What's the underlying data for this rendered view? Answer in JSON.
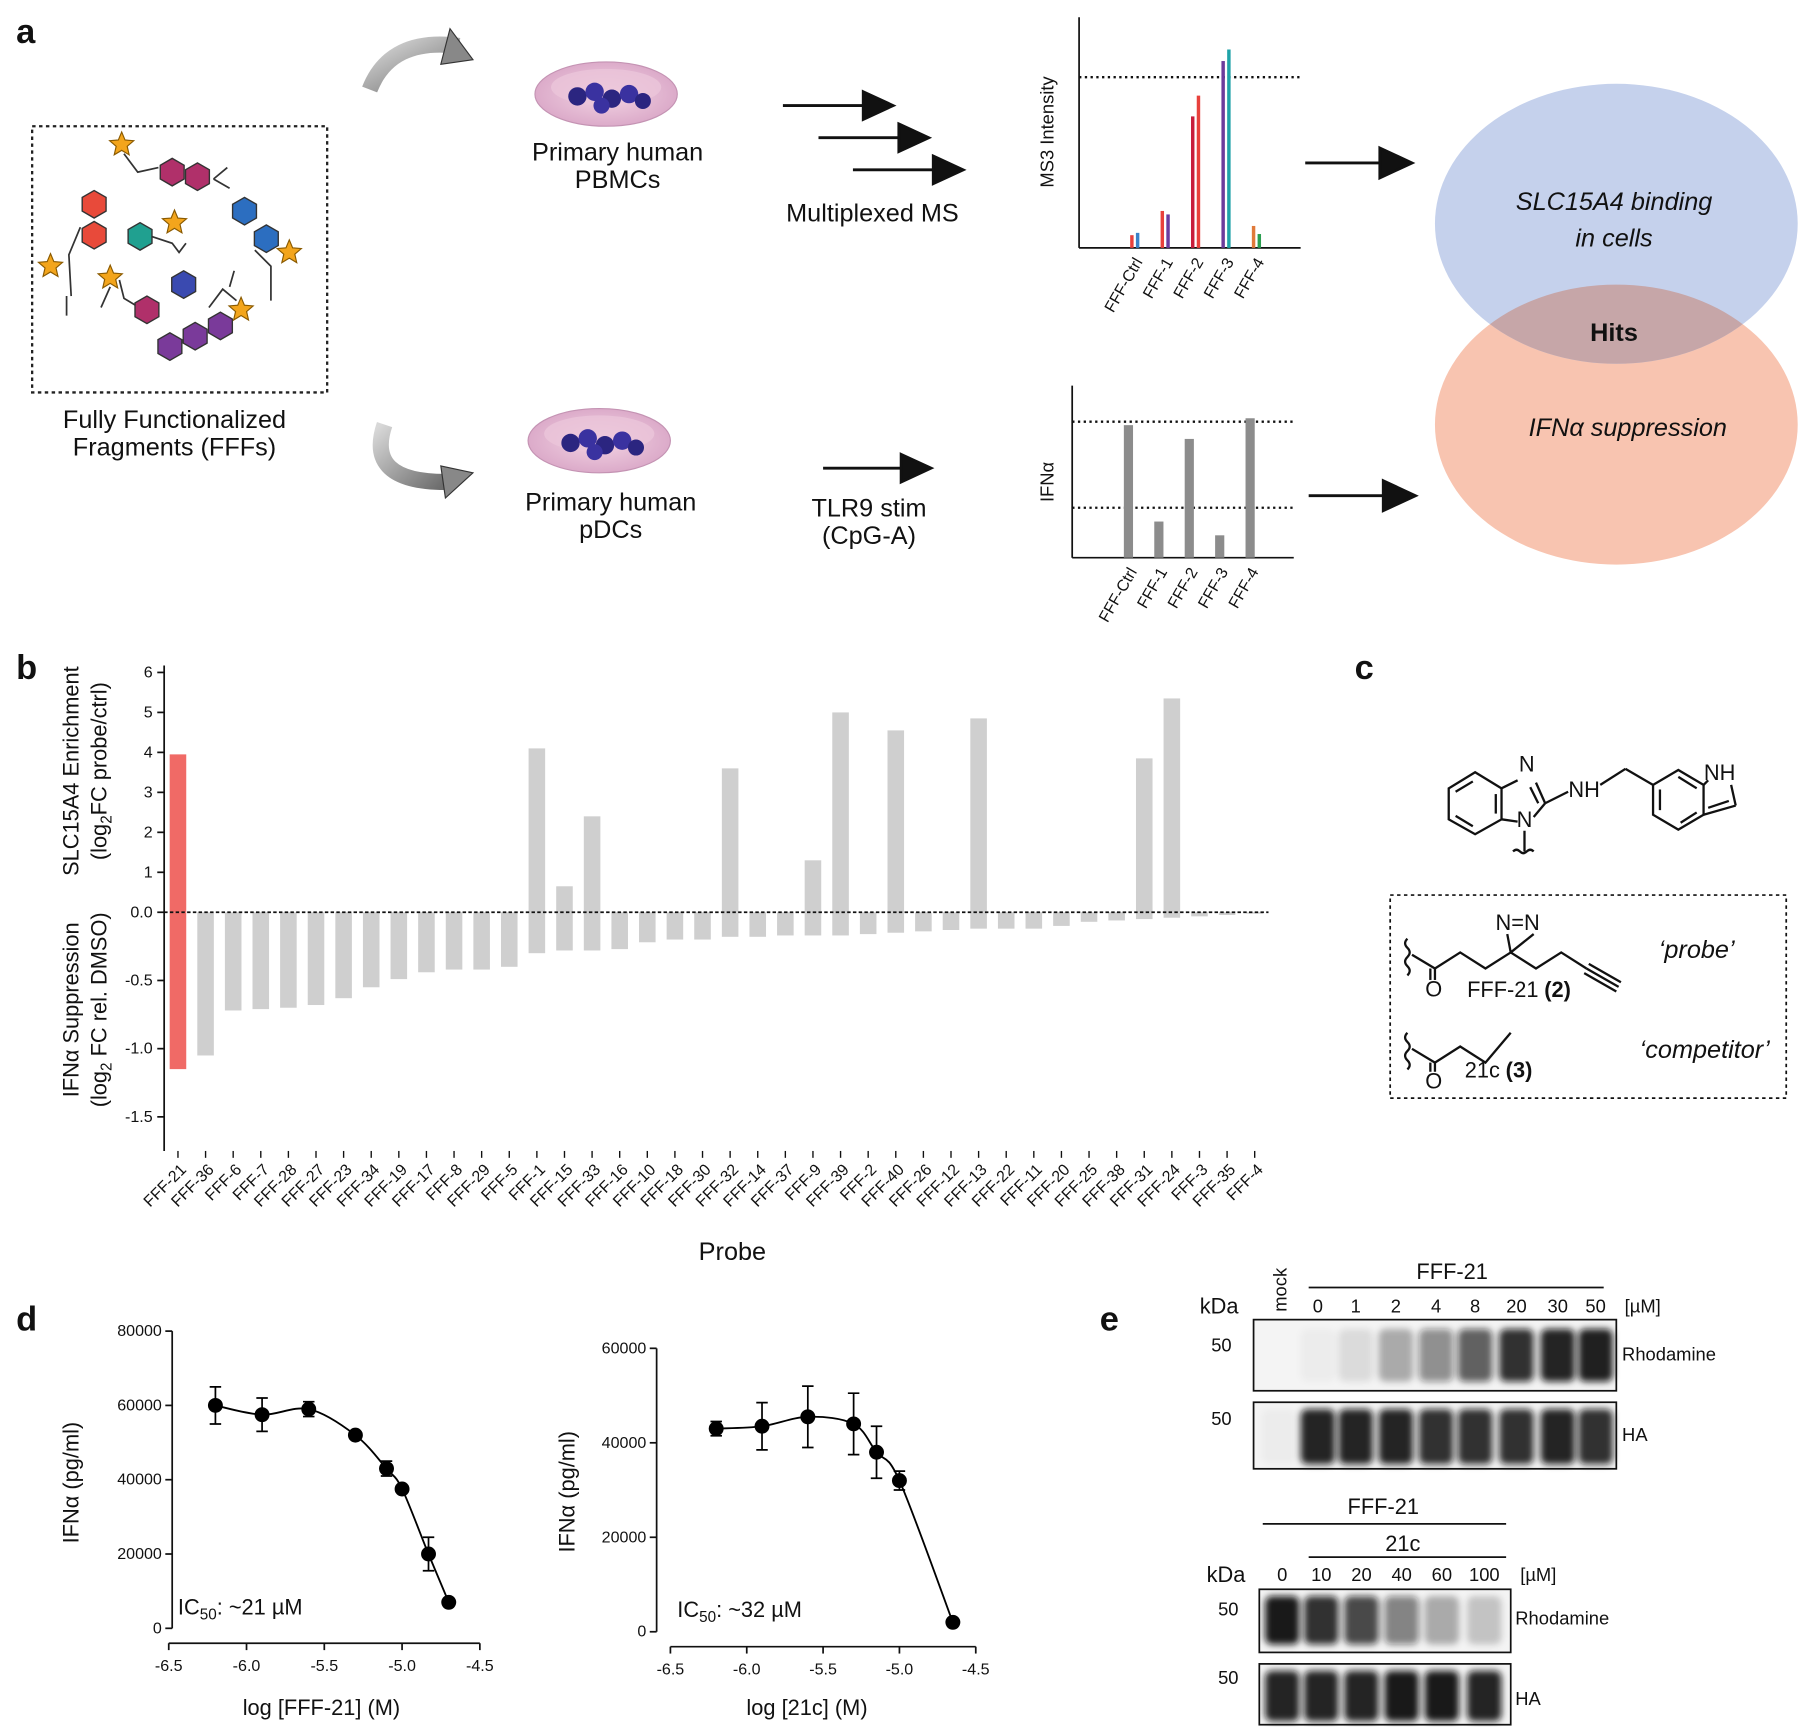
{
  "panel_labels": [
    "a",
    "b",
    "c",
    "d",
    "e"
  ],
  "panel_a": {
    "library": [
      "Fully Functionalized",
      "Fragments (FFFs)"
    ],
    "pbmc": [
      "Primary human",
      "PBMCs"
    ],
    "ms": "Multiplexed MS",
    "pdc": [
      "Primary human",
      "pDCs"
    ],
    "stim": [
      "TLR9 stim",
      "(CpG-A)"
    ],
    "venn": {
      "binding": [
        "SLC15A4 binding",
        "in cells"
      ],
      "hits": "Hits",
      "suppression": "IFNα suppression"
    }
  },
  "chart_data": [
    {
      "type": "grouped-bar",
      "ylabel": "MS3 Intensity",
      "categories": [
        "FFF-Ctrl",
        "FFF-1",
        "FFF-2",
        "FFF-3",
        "FFF-4"
      ],
      "series": [
        {
          "values": [
            0.055,
            0.16,
            0.57,
            0.81,
            0.095
          ],
          "colors": [
            "#e8413c",
            "#e8413c",
            "#c81e3c",
            "#6c3c9c",
            "#e07a3a"
          ]
        },
        {
          "values": [
            0.065,
            0.145,
            0.66,
            0.86,
            0.06
          ],
          "colors": [
            "#3a82c8",
            "#6a3ca0",
            "#e8413c",
            "#1fa3a8",
            "#2a9e50"
          ]
        }
      ],
      "ylim": [
        0,
        1
      ],
      "thresholds": [
        0.74
      ]
    },
    {
      "type": "bar",
      "ylabel": "IFNα",
      "categories": [
        "FFF-Ctrl",
        "FFF-1",
        "FFF-2",
        "FFF-3",
        "FFF-4"
      ],
      "values": [
        0.77,
        0.21,
        0.69,
        0.13,
        0.81
      ],
      "color": "#8c8c8c",
      "ylim": [
        0,
        1
      ],
      "thresholds": [
        0.79,
        0.29
      ]
    },
    {
      "type": "diverging-bar",
      "xlabel": "Probe",
      "ylabel": {
        "line1": "SLC15A4 Enrichment",
        "line2": [
          "(log",
          "2",
          "FC probe/ctrl)"
        ]
      },
      "y2label": {
        "line1": "IFNα Suppression",
        "line2": [
          "(log",
          "2",
          " FC rel. DMSO)"
        ]
      },
      "categories": [
        "FFF-21",
        "FFF-36",
        "FFF-6",
        "FFF-7",
        "FFF-28",
        "FFF-27",
        "FFF-23",
        "FFF-34",
        "FFF-19",
        "FFF-17",
        "FFF-8",
        "FFF-29",
        "FFF-5",
        "FFF-1",
        "FFF-15",
        "FFF-33",
        "FFF-16",
        "FFF-10",
        "FFF-18",
        "FFF-30",
        "FFF-32",
        "FFF-14",
        "FFF-37",
        "FFF-9",
        "FFF-39",
        "FFF-2",
        "FFF-40",
        "FFF-26",
        "FFF-12",
        "FFF-13",
        "FFF-22",
        "FFF-11",
        "FFF-20",
        "FFF-25",
        "FFF-38",
        "FFF-31",
        "FFF-24",
        "FFF-3",
        "FFF-35",
        "FFF-4"
      ],
      "series": [
        {
          "axis": "y",
          "values": [
            3.95,
            0,
            0,
            0,
            0,
            0,
            0,
            0,
            0,
            0,
            0,
            0,
            0,
            4.1,
            0.65,
            2.4,
            0,
            0,
            0,
            0,
            3.6,
            0,
            0,
            1.3,
            5.0,
            0,
            4.55,
            0,
            0,
            4.85,
            0,
            0,
            0,
            0,
            0,
            3.85,
            5.35,
            0,
            0,
            0
          ],
          "colors": [
            "#f06a66",
            "#cfcfcf",
            "#cfcfcf",
            "#cfcfcf",
            "#cfcfcf",
            "#cfcfcf",
            "#cfcfcf",
            "#cfcfcf",
            "#cfcfcf",
            "#cfcfcf",
            "#cfcfcf",
            "#cfcfcf",
            "#cfcfcf",
            "#cfcfcf",
            "#cfcfcf",
            "#cfcfcf",
            "#cfcfcf",
            "#cfcfcf",
            "#cfcfcf",
            "#cfcfcf",
            "#cfcfcf",
            "#cfcfcf",
            "#cfcfcf",
            "#cfcfcf",
            "#cfcfcf",
            "#cfcfcf",
            "#cfcfcf",
            "#cfcfcf",
            "#cfcfcf",
            "#cfcfcf",
            "#cfcfcf",
            "#cfcfcf",
            "#cfcfcf",
            "#cfcfcf",
            "#cfcfcf",
            "#cfcfcf",
            "#cfcfcf",
            "#cfcfcf",
            "#cfcfcf",
            "#cfcfcf"
          ]
        },
        {
          "axis": "y2",
          "values": [
            -1.15,
            -1.05,
            -0.72,
            -0.71,
            -0.7,
            -0.68,
            -0.63,
            -0.55,
            -0.49,
            -0.44,
            -0.42,
            -0.42,
            -0.4,
            -0.3,
            -0.28,
            -0.28,
            -0.27,
            -0.22,
            -0.2,
            -0.2,
            -0.18,
            -0.18,
            -0.17,
            -0.17,
            -0.17,
            -0.16,
            -0.15,
            -0.14,
            -0.13,
            -0.12,
            -0.12,
            -0.12,
            -0.1,
            -0.07,
            -0.06,
            -0.05,
            -0.04,
            -0.03,
            -0.02,
            -0.01
          ],
          "colors": [
            "#f06a66",
            "#cfcfcf",
            "#cfcfcf",
            "#cfcfcf",
            "#cfcfcf",
            "#cfcfcf",
            "#cfcfcf",
            "#cfcfcf",
            "#cfcfcf",
            "#cfcfcf",
            "#cfcfcf",
            "#cfcfcf",
            "#cfcfcf",
            "#cfcfcf",
            "#cfcfcf",
            "#cfcfcf",
            "#cfcfcf",
            "#cfcfcf",
            "#cfcfcf",
            "#cfcfcf",
            "#cfcfcf",
            "#cfcfcf",
            "#cfcfcf",
            "#cfcfcf",
            "#cfcfcf",
            "#cfcfcf",
            "#cfcfcf",
            "#cfcfcf",
            "#cfcfcf",
            "#cfcfcf",
            "#cfcfcf",
            "#cfcfcf",
            "#cfcfcf",
            "#cfcfcf",
            "#cfcfcf",
            "#cfcfcf",
            "#cfcfcf",
            "#cfcfcf",
            "#cfcfcf",
            "#cfcfcf"
          ]
        }
      ],
      "ylim": [
        0,
        6
      ],
      "yticks": [
        {
          "value": 0,
          "label": "0.0"
        },
        1,
        2,
        3,
        4,
        5,
        6
      ],
      "y2lim": [
        -1.75,
        0
      ],
      "y2ticks": [
        -0.5,
        {
          "value": -1,
          "label": "-1.0"
        },
        -1.5
      ]
    },
    {
      "type": "dose-response",
      "xlabel": "log [FFF-21] (M)",
      "ylabel": "IFNα (pg/ml)",
      "annotation": [
        "IC",
        "50",
        ": ~21 µM"
      ],
      "x": [
        -6.2,
        -5.9,
        -5.6,
        -5.3,
        -5.1,
        -5.0,
        -4.83,
        -4.7
      ],
      "series": [
        {
          "color": "#000000",
          "values": [
            60000,
            57500,
            59000,
            52000,
            43000,
            37500,
            20000,
            7000
          ],
          "errors": [
            5000,
            4500,
            2000,
            0,
            2000,
            0,
            4500,
            0
          ]
        }
      ],
      "xlim": [
        -6.5,
        -4.5
      ],
      "xticks": [
        -6.5,
        {
          "value": -6,
          "label": "-6.0"
        },
        -5.5,
        {
          "value": -5,
          "label": "-5.0"
        },
        -4.5
      ],
      "ylim": [
        0,
        80000
      ],
      "yticks": [
        0,
        20000,
        40000,
        60000,
        80000
      ]
    },
    {
      "type": "dose-response",
      "xlabel": "log [21c] (M)",
      "ylabel": "IFNα (pg/ml)",
      "annotation": [
        "IC",
        "50",
        ": ~32 µM"
      ],
      "x": [
        -6.2,
        -5.9,
        -5.6,
        -5.3,
        -5.15,
        -5.0,
        -4.65
      ],
      "series": [
        {
          "color": "#000000",
          "values": [
            43000,
            43500,
            45500,
            44000,
            38000,
            32000,
            2000
          ],
          "errors": [
            1500,
            5000,
            6500,
            6500,
            5500,
            2000,
            0
          ]
        }
      ],
      "xlim": [
        -6.5,
        -4.5
      ],
      "xticks": [
        -6.5,
        {
          "value": -6,
          "label": "-6.0"
        },
        -5.5,
        {
          "value": -5,
          "label": "-5.0"
        },
        -4.5
      ],
      "ylim": [
        0,
        60000
      ],
      "yticks": [
        0,
        20000,
        40000,
        60000
      ]
    }
  ],
  "panel_c": {
    "atoms": {
      "n1": "N",
      "nh1": "NH",
      "n2": "N",
      "nh2": "NH",
      "diazirine": "N=N",
      "o1": "O",
      "o2": "O"
    },
    "probe": {
      "name": "FFF-21",
      "number": "(2)",
      "role": "‘probe’"
    },
    "competitor": {
      "name": "21c",
      "number": "(3)",
      "role": "‘competitor’"
    }
  },
  "panel_e": {
    "top": {
      "kda": "kDa",
      "mock": "mock",
      "treatment": "FFF-21",
      "lanes": [
        0,
        1,
        2,
        4,
        8,
        20,
        30,
        50
      ],
      "unit": "[µM]",
      "gels": [
        {
          "marker": 50,
          "label": "Rhodamine",
          "intensity": [
            0,
            0.03,
            0.1,
            0.3,
            0.45,
            0.65,
            0.85,
            0.9,
            0.92
          ]
        },
        {
          "marker": 50,
          "label": "HA",
          "intensity": [
            0.03,
            0.9,
            0.9,
            0.9,
            0.85,
            0.85,
            0.85,
            0.9,
            0.85
          ]
        }
      ]
    },
    "bottom": {
      "kda": "kDa",
      "treatment": "FFF-21",
      "competitor": "21c",
      "lanes": [
        0,
        10,
        20,
        40,
        60,
        100
      ],
      "unit": "[µM]",
      "gels": [
        {
          "marker": 50,
          "label": "Rhodamine",
          "intensity": [
            0.95,
            0.85,
            0.75,
            0.5,
            0.3,
            0.2
          ]
        },
        {
          "marker": 50,
          "label": "HA",
          "intensity": [
            0.9,
            0.9,
            0.9,
            0.95,
            0.95,
            0.9
          ]
        }
      ]
    }
  }
}
